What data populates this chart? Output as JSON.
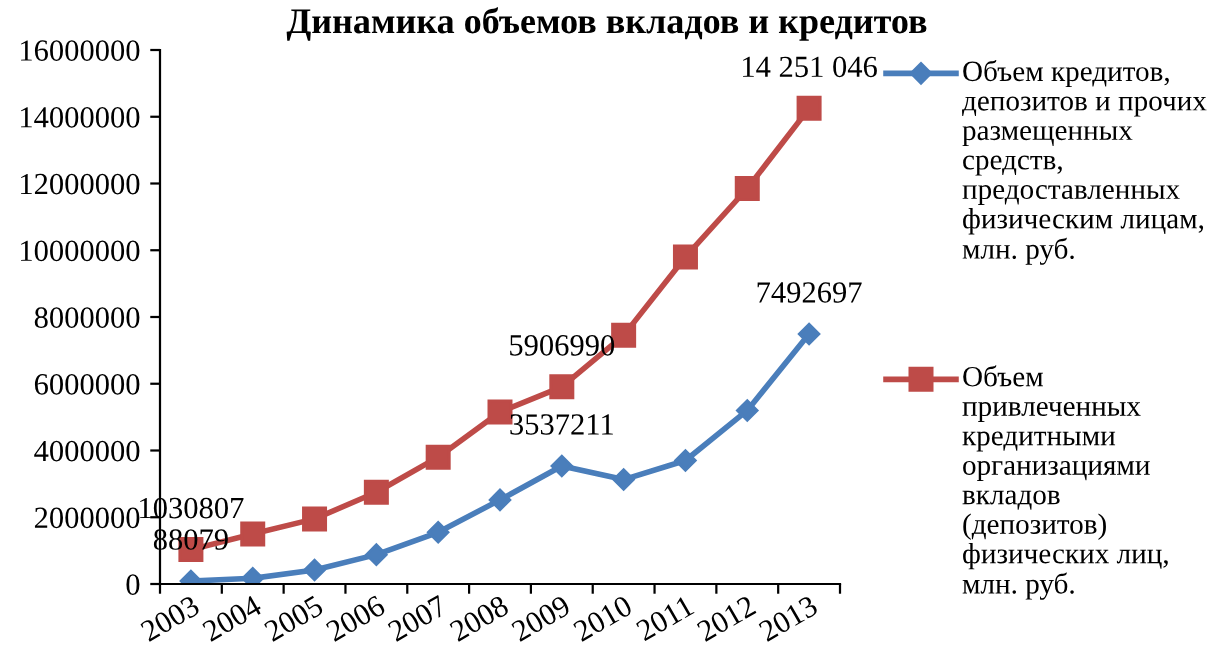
{
  "chart_data": {
    "type": "line",
    "title": "Динамика объемов вкладов и кредитов",
    "categories": [
      "2003",
      "2004",
      "2005",
      "2006",
      "2007",
      "2008",
      "2009",
      "2010",
      "2011",
      "2012",
      "2013"
    ],
    "series": [
      {
        "name": "Объем кредитов, депозитов и прочих размещенных средств, предоставленных физическим лицам, млн. руб.",
        "color": "#4a7ebb",
        "marker": "diamond",
        "values": [
          88079,
          170000,
          420000,
          880000,
          1550000,
          2520000,
          3537211,
          3130000,
          3700000,
          5200000,
          7492697
        ],
        "value_labels": [
          "88079",
          null,
          null,
          null,
          null,
          null,
          "3537211",
          null,
          null,
          null,
          "7492697"
        ]
      },
      {
        "name": "Объем привлеченных кредитными организациями вкладов (депозитов) физических лиц, млн. руб.",
        "color": "#be4b48",
        "marker": "square",
        "values": [
          1030807,
          1500000,
          1950000,
          2750000,
          3800000,
          5150000,
          5906990,
          7450000,
          9800000,
          11850000,
          14251046
        ],
        "value_labels": [
          "1030807",
          null,
          null,
          null,
          null,
          null,
          "5906990",
          null,
          null,
          null,
          "14 251 046"
        ]
      }
    ],
    "ylim": [
      0,
      16000000
    ],
    "yticks": [
      0,
      2000000,
      4000000,
      6000000,
      8000000,
      10000000,
      12000000,
      14000000,
      16000000
    ],
    "grid": false,
    "legend": "right"
  }
}
